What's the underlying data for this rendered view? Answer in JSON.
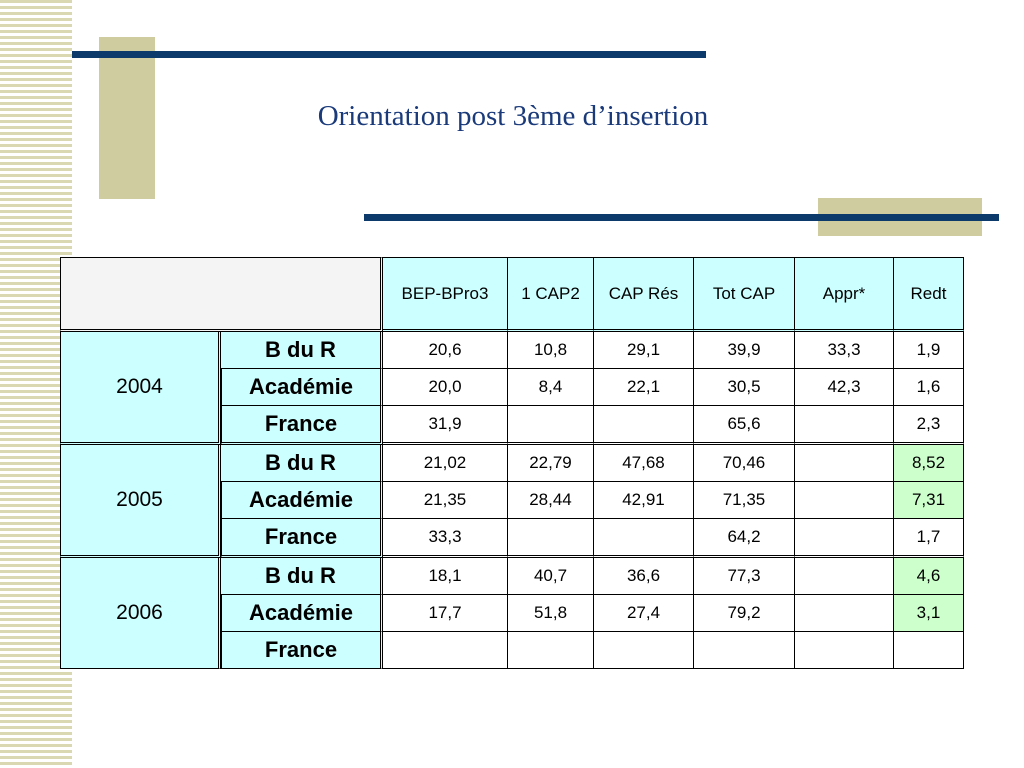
{
  "slide": {
    "title": "Orientation post 3ème d’insertion"
  },
  "table": {
    "columns": [
      "BEP-BPro3",
      "1 CAP2",
      "CAP Rés",
      "Tot CAP",
      "Appr*",
      "Redt"
    ],
    "groups": [
      {
        "year": "2004",
        "rows": [
          {
            "label": "B du R",
            "values": [
              "20,6",
              "10,8",
              "29,1",
              "39,9",
              "33,3",
              "1,9"
            ]
          },
          {
            "label": "Académie",
            "values": [
              "20,0",
              "8,4",
              "22,1",
              "30,5",
              "42,3",
              "1,6"
            ]
          },
          {
            "label": "France",
            "values": [
              "31,9",
              "",
              "",
              "65,6",
              "",
              "2,3"
            ]
          }
        ]
      },
      {
        "year": "2005",
        "rows": [
          {
            "label": "B du R",
            "values": [
              "21,02",
              "22,79",
              "47,68",
              "70,46",
              "",
              "8,52"
            ]
          },
          {
            "label": "Académie",
            "values": [
              "21,35",
              "28,44",
              "42,91",
              "71,35",
              "",
              "7,31"
            ]
          },
          {
            "label": "France",
            "values": [
              "33,3",
              "",
              "",
              "64,2",
              "",
              "1,7"
            ]
          }
        ]
      },
      {
        "year": "2006",
        "rows": [
          {
            "label": "B du R",
            "values": [
              "18,1",
              "40,7",
              "36,6",
              "77,3",
              "",
              "4,6"
            ]
          },
          {
            "label": "Académie",
            "values": [
              "17,7",
              "51,8",
              "27,4",
              "79,2",
              "",
              "3,1"
            ]
          },
          {
            "label": "France",
            "values": [
              "",
              "",
              "",
              "",
              "",
              ""
            ]
          }
        ]
      }
    ]
  },
  "colors": {
    "header_fill": "#ccffff",
    "highlight_fill": "#ccffcc",
    "title_color": "#1a3a7a",
    "accent_line": "#0b3a6b",
    "accent_block": "#cfcda0"
  }
}
